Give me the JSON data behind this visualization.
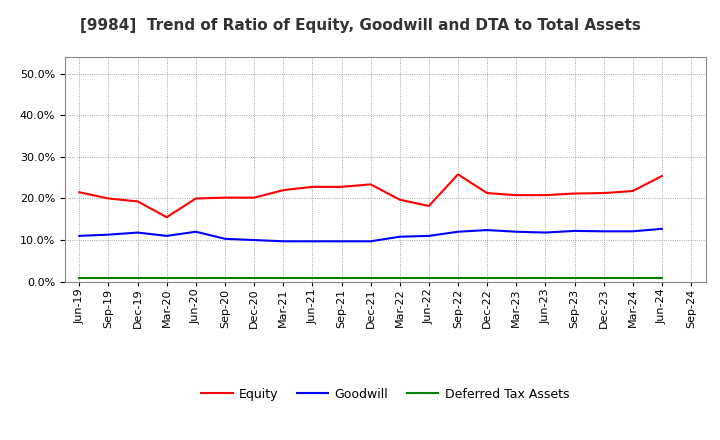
{
  "title": "[9984]  Trend of Ratio of Equity, Goodwill and DTA to Total Assets",
  "x_labels": [
    "Jun-19",
    "Sep-19",
    "Dec-19",
    "Mar-20",
    "Jun-20",
    "Sep-20",
    "Dec-20",
    "Mar-21",
    "Jun-21",
    "Sep-21",
    "Dec-21",
    "Mar-22",
    "Jun-22",
    "Sep-22",
    "Dec-22",
    "Mar-23",
    "Jun-23",
    "Sep-23",
    "Dec-23",
    "Mar-24",
    "Jun-24",
    "Sep-24"
  ],
  "equity": [
    0.215,
    0.2,
    0.193,
    0.155,
    0.2,
    0.202,
    0.202,
    0.22,
    0.228,
    0.228,
    0.234,
    0.197,
    0.182,
    0.258,
    0.213,
    0.208,
    0.208,
    0.212,
    0.213,
    0.218,
    0.254,
    null
  ],
  "goodwill": [
    0.11,
    0.113,
    0.118,
    0.11,
    0.12,
    0.103,
    0.1,
    0.097,
    0.097,
    0.097,
    0.097,
    0.108,
    0.11,
    0.12,
    0.124,
    0.12,
    0.118,
    0.122,
    0.121,
    0.121,
    0.127,
    null
  ],
  "dta": [
    0.008,
    0.008,
    0.008,
    0.008,
    0.008,
    0.008,
    0.008,
    0.008,
    0.008,
    0.008,
    0.008,
    0.008,
    0.008,
    0.008,
    0.008,
    0.008,
    0.008,
    0.008,
    0.008,
    0.008,
    0.008,
    null
  ],
  "equity_color": "#ff0000",
  "goodwill_color": "#0000ff",
  "dta_color": "#008000",
  "bg_color": "#ffffff",
  "plot_bg_color": "#ffffff",
  "grid_color": "#888888",
  "ylim": [
    0.0,
    0.54
  ],
  "yticks": [
    0.0,
    0.1,
    0.2,
    0.3,
    0.4,
    0.5
  ],
  "title_fontsize": 11,
  "legend_fontsize": 9,
  "tick_fontsize": 8,
  "linewidth": 1.5
}
